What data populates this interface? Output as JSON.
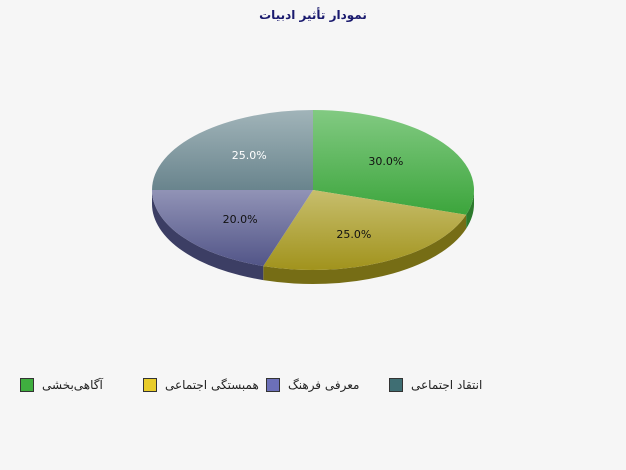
{
  "chart_data": {
    "type": "pie",
    "title": "نمودار تأثیر ادبیات",
    "slices": [
      {
        "label": "آگاهی‌بخشی",
        "value": 30.0,
        "value_label": "30.0%",
        "color": "#3fae3f"
      },
      {
        "label": "همبستگی اجتماعی",
        "value": 25.0,
        "value_label": "25.0%",
        "color": "#a99b1e"
      },
      {
        "label": "معرفی فرهنگ",
        "value": 20.0,
        "value_label": "20.0%",
        "color": "#56598f"
      },
      {
        "label": "انتقاد اجتماعی",
        "value": 25.0,
        "value_label": "25.0%",
        "color": "#6f8b94"
      }
    ],
    "legend_position": "bottom",
    "style": "3d"
  },
  "legend": {
    "swatch_colors": [
      "#3fae3f",
      "#e8cc2a",
      "#6c70b8",
      "#3f6e73"
    ]
  }
}
